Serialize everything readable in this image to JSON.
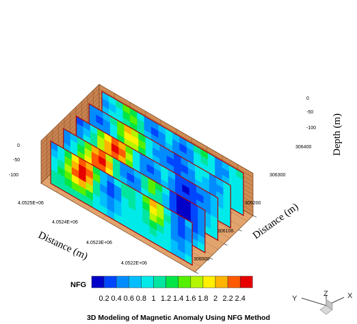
{
  "chart_data": {
    "type": "heatmap",
    "title": "3D Modeling of Magnetic Anomaly Using NFG Method",
    "axes": {
      "northing": {
        "label": "Distance (m)",
        "ticks": [
          "4.0525E+06",
          "4.0524E+06",
          "4.0523E+06",
          "4.0522E+06"
        ]
      },
      "easting": {
        "label": "Distance (m)",
        "ticks": [
          "306000",
          "306100",
          "306200",
          "306300",
          "306400"
        ]
      },
      "depth": {
        "label": "Depth (m)",
        "ticks": [
          "0",
          "-50",
          "-100"
        ]
      }
    },
    "colorbar": {
      "label": "NFG",
      "ticks": [
        "0.2",
        "0.4",
        "0.6",
        "0.8",
        "1",
        "1.2",
        "1.4",
        "1.6",
        "1.8",
        "2",
        "2.2",
        "2.4"
      ],
      "range": [
        0.2,
        2.4
      ],
      "colors": [
        "#0000c8",
        "#0046ff",
        "#008cff",
        "#00beff",
        "#00eaea",
        "#00e6a0",
        "#00e646",
        "#55f000",
        "#b4f500",
        "#fff000",
        "#ffb400",
        "#ff5a00",
        "#e60000"
      ]
    },
    "profiles": [
      {
        "easting": 306000,
        "nfg": [
          [
            0.7,
            0.9,
            1.3,
            1.8,
            2.2,
            1.9,
            1.3,
            0.8,
            0.6,
            0.9,
            1.2,
            1.1,
            0.9,
            1.4,
            1.9,
            1.6,
            1.0,
            0.6,
            0.5,
            0.8
          ],
          [
            0.8,
            1.0,
            1.5,
            2.0,
            2.4,
            2.1,
            1.4,
            0.8,
            0.5,
            0.7,
            1.1,
            1.2,
            1.0,
            1.3,
            1.8,
            1.7,
            1.1,
            0.6,
            0.4,
            0.7
          ],
          [
            0.9,
            1.2,
            1.6,
            2.1,
            2.3,
            1.9,
            1.2,
            0.7,
            0.5,
            0.7,
            1.0,
            1.1,
            1.0,
            1.2,
            1.6,
            1.5,
            1.0,
            0.7,
            0.5,
            0.7
          ],
          [
            1.0,
            1.3,
            1.5,
            1.8,
            1.9,
            1.6,
            1.1,
            0.8,
            0.6,
            0.8,
            1.0,
            1.0,
            0.9,
            1.1,
            1.3,
            1.2,
            0.9,
            0.7,
            0.6,
            0.8
          ],
          [
            1.1,
            1.2,
            1.3,
            1.4,
            1.5,
            1.3,
            1.0,
            0.8,
            0.7,
            0.8,
            0.9,
            0.9,
            0.9,
            1.0,
            1.1,
            1.0,
            0.9,
            0.8,
            0.7,
            0.8
          ],
          [
            1.1,
            1.1,
            1.2,
            1.2,
            1.2,
            1.1,
            1.0,
            0.9,
            0.8,
            0.9,
            0.9,
            0.9,
            0.9,
            0.9,
            1.0,
            0.9,
            0.9,
            0.8,
            0.8,
            0.9
          ]
        ]
      },
      {
        "easting": 306100,
        "nfg": [
          [
            0.6,
            0.8,
            1.1,
            1.5,
            1.9,
            2.1,
            1.7,
            1.1,
            0.7,
            0.6,
            0.8,
            1.2,
            1.5,
            1.3,
            0.9,
            0.5,
            0.3,
            0.3,
            0.4,
            0.6
          ],
          [
            0.7,
            0.9,
            1.3,
            1.7,
            2.2,
            2.4,
            1.9,
            1.2,
            0.7,
            0.5,
            0.7,
            1.1,
            1.4,
            1.2,
            0.8,
            0.4,
            0.2,
            0.2,
            0.4,
            0.6
          ],
          [
            0.8,
            1.0,
            1.4,
            1.8,
            2.1,
            2.2,
            1.8,
            1.2,
            0.8,
            0.6,
            0.7,
            1.0,
            1.2,
            1.1,
            0.8,
            0.5,
            0.3,
            0.3,
            0.4,
            0.6
          ],
          [
            0.9,
            1.1,
            1.3,
            1.6,
            1.8,
            1.8,
            1.5,
            1.1,
            0.8,
            0.7,
            0.8,
            0.9,
            1.0,
            1.0,
            0.8,
            0.6,
            0.5,
            0.5,
            0.5,
            0.7
          ],
          [
            1.0,
            1.1,
            1.2,
            1.3,
            1.4,
            1.4,
            1.2,
            1.0,
            0.9,
            0.8,
            0.8,
            0.9,
            0.9,
            0.9,
            0.8,
            0.7,
            0.6,
            0.6,
            0.7,
            0.8
          ],
          [
            1.0,
            1.0,
            1.1,
            1.1,
            1.2,
            1.1,
            1.1,
            1.0,
            0.9,
            0.9,
            0.9,
            0.9,
            0.9,
            0.9,
            0.9,
            0.8,
            0.8,
            0.8,
            0.8,
            0.9
          ]
        ]
      },
      {
        "easting": 306200,
        "nfg": [
          [
            0.5,
            0.7,
            1.0,
            1.4,
            1.8,
            2.2,
            2.0,
            1.5,
            1.0,
            0.7,
            0.6,
            0.8,
            1.0,
            0.8,
            0.5,
            0.4,
            0.5,
            0.6,
            0.7,
            0.8
          ],
          [
            0.6,
            0.8,
            1.1,
            1.6,
            2.0,
            2.4,
            2.2,
            1.6,
            1.0,
            0.6,
            0.5,
            0.7,
            0.9,
            0.7,
            0.4,
            0.3,
            0.4,
            0.5,
            0.7,
            0.8
          ],
          [
            0.7,
            0.9,
            1.2,
            1.6,
            1.9,
            2.1,
            1.9,
            1.5,
            1.0,
            0.7,
            0.6,
            0.7,
            0.8,
            0.7,
            0.5,
            0.4,
            0.5,
            0.6,
            0.7,
            0.8
          ],
          [
            0.8,
            1.0,
            1.2,
            1.4,
            1.6,
            1.7,
            1.6,
            1.3,
            1.0,
            0.8,
            0.7,
            0.7,
            0.8,
            0.7,
            0.6,
            0.5,
            0.6,
            0.7,
            0.8,
            0.9
          ],
          [
            0.9,
            1.0,
            1.1,
            1.2,
            1.3,
            1.4,
            1.3,
            1.1,
            1.0,
            0.9,
            0.8,
            0.8,
            0.8,
            0.8,
            0.7,
            0.7,
            0.7,
            0.8,
            0.8,
            0.9
          ],
          [
            1.0,
            1.0,
            1.0,
            1.1,
            1.1,
            1.2,
            1.1,
            1.0,
            1.0,
            0.9,
            0.9,
            0.9,
            0.9,
            0.9,
            0.8,
            0.8,
            0.8,
            0.9,
            0.9,
            0.9
          ]
        ]
      },
      {
        "easting": 306300,
        "nfg": [
          [
            0.7,
            0.6,
            0.8,
            1.1,
            1.5,
            1.9,
            1.7,
            1.3,
            1.0,
            0.8,
            0.7,
            0.6,
            0.5,
            0.6,
            0.8,
            1.0,
            0.9,
            0.7,
            0.8,
            1.0
          ],
          [
            0.6,
            0.5,
            0.7,
            1.0,
            1.4,
            1.8,
            1.8,
            1.4,
            1.0,
            0.7,
            0.6,
            0.5,
            0.4,
            0.5,
            0.7,
            0.9,
            0.8,
            0.6,
            0.7,
            0.9
          ],
          [
            0.7,
            0.6,
            0.7,
            1.0,
            1.3,
            1.6,
            1.6,
            1.3,
            1.0,
            0.8,
            0.7,
            0.6,
            0.5,
            0.6,
            0.7,
            0.8,
            0.8,
            0.7,
            0.8,
            0.9
          ],
          [
            0.8,
            0.7,
            0.8,
            1.0,
            1.2,
            1.4,
            1.4,
            1.2,
            1.0,
            0.9,
            0.8,
            0.7,
            0.7,
            0.7,
            0.8,
            0.8,
            0.8,
            0.8,
            0.8,
            0.9
          ],
          [
            0.9,
            0.8,
            0.9,
            1.0,
            1.1,
            1.2,
            1.2,
            1.1,
            1.0,
            0.9,
            0.9,
            0.8,
            0.8,
            0.8,
            0.8,
            0.9,
            0.9,
            0.9,
            0.9,
            0.9
          ],
          [
            0.9,
            0.9,
            0.9,
            1.0,
            1.0,
            1.1,
            1.1,
            1.0,
            1.0,
            0.9,
            0.9,
            0.9,
            0.9,
            0.9,
            0.9,
            0.9,
            0.9,
            0.9,
            0.9,
            1.0
          ]
        ]
      },
      {
        "easting": 306400,
        "nfg": [
          [
            0.8,
            0.9,
            1.1,
            1.4,
            1.3,
            1.0,
            0.7,
            0.6,
            0.8,
            1.0,
            0.8,
            0.6,
            0.8,
            1.1,
            1.3,
            1.0,
            0.7,
            0.8,
            1.0,
            1.1
          ],
          [
            0.7,
            0.8,
            1.0,
            1.3,
            1.4,
            1.1,
            0.7,
            0.5,
            0.7,
            0.9,
            0.7,
            0.5,
            0.7,
            1.0,
            1.2,
            0.9,
            0.6,
            0.7,
            0.9,
            1.0
          ],
          [
            0.8,
            0.9,
            1.0,
            1.2,
            1.3,
            1.1,
            0.8,
            0.6,
            0.7,
            0.8,
            0.7,
            0.6,
            0.7,
            0.9,
            1.0,
            0.9,
            0.7,
            0.8,
            0.9,
            1.0
          ],
          [
            0.9,
            0.9,
            1.0,
            1.1,
            1.2,
            1.1,
            0.9,
            0.7,
            0.8,
            0.8,
            0.8,
            0.7,
            0.8,
            0.9,
            0.9,
            0.9,
            0.8,
            0.8,
            0.9,
            1.0
          ],
          [
            0.9,
            1.0,
            1.0,
            1.1,
            1.1,
            1.0,
            0.9,
            0.8,
            0.8,
            0.9,
            0.8,
            0.8,
            0.8,
            0.9,
            0.9,
            0.9,
            0.9,
            0.9,
            0.9,
            1.0
          ],
          [
            1.0,
            1.0,
            1.0,
            1.0,
            1.1,
            1.0,
            0.9,
            0.9,
            0.9,
            0.9,
            0.9,
            0.9,
            0.9,
            0.9,
            0.9,
            0.9,
            0.9,
            0.9,
            1.0,
            1.0
          ]
        ]
      }
    ]
  },
  "view_triad": {
    "x_label": "X",
    "y_label": "Y",
    "z_label": "Z"
  }
}
